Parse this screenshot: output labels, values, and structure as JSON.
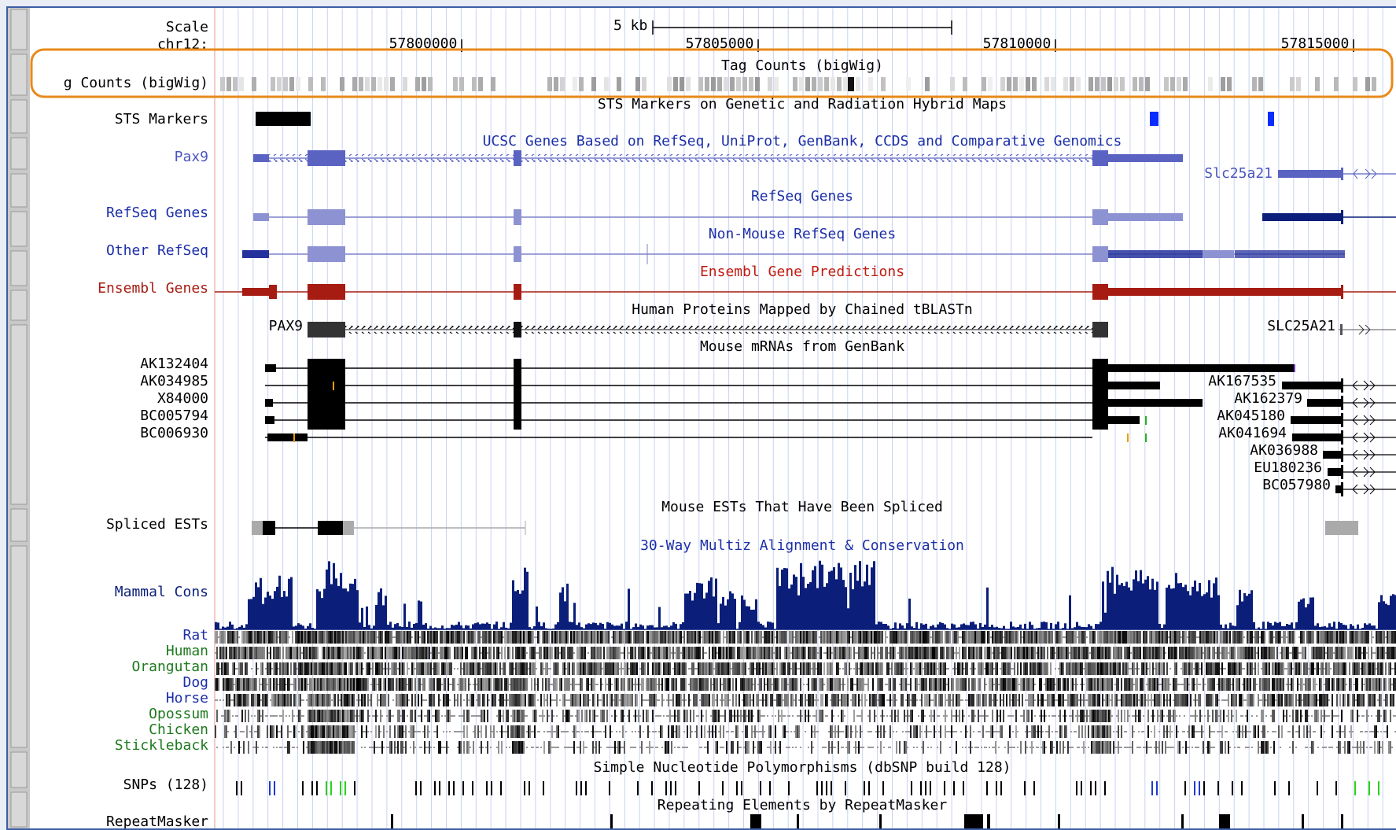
{
  "scale": {
    "label": "Scale",
    "bar_label": "5 kb"
  },
  "chrom": {
    "label": "chr12:",
    "positions": [
      "57800000",
      "57805000",
      "57810000",
      "57815000"
    ]
  },
  "tracks": {
    "tag_counts": {
      "title": "Tag Counts (bigWig)",
      "label": "g Counts (bigWig)"
    },
    "sts": {
      "title": "STS Markers on Genetic and Radiation Hybrid Maps",
      "label": "STS Markers"
    },
    "ucsc": {
      "title": "UCSC Genes Based on RefSeq, UniProt, GenBank, CCDS and Comparative Genomics",
      "label": "Pax9",
      "gene2": "Slc25a21"
    },
    "refseq": {
      "title": "RefSeq Genes",
      "label": "RefSeq Genes"
    },
    "other_refseq": {
      "title": "Non-Mouse RefSeq Genes",
      "label": "Other RefSeq"
    },
    "ensembl": {
      "title": "Ensembl Gene Predictions",
      "label": "Ensembl Genes"
    },
    "human_prot": {
      "title": "Human Proteins Mapped by Chained tBLASTn",
      "label1": "PAX9",
      "label2": "SLC25A21"
    },
    "mrna": {
      "title": "Mouse mRNAs from GenBank",
      "left_items": [
        "AK132404",
        "AK034985",
        "X84000",
        "BC005794",
        "BC006930"
      ],
      "right_items": [
        "AK167535",
        "AK162379",
        "AK045180",
        "AK041694",
        "AK036988",
        "EU180236",
        "BC057980"
      ]
    },
    "spliced": {
      "title": "Mouse ESTs That Have Been Spliced",
      "label": "Spliced ESTs"
    },
    "multiz": {
      "title": "30-Way Multiz Alignment & Conservation",
      "label": "Mammal Cons"
    },
    "species": [
      "Rat",
      "Human",
      "Orangutan",
      "Dog",
      "Horse",
      "Opossum",
      "Chicken",
      "Stickleback"
    ],
    "snps": {
      "title": "Simple Nucleotide Polymorphisms (dbSNP build 128)",
      "label": "SNPs (128)"
    },
    "repeat": {
      "title": "Repeating Elements by RepeatMasker",
      "label": "RepeatMasker"
    }
  },
  "colors": {
    "highlight": "#e8891a",
    "navy": "#0b1f7a",
    "blue": "#1c2fa8",
    "refseq": "#7d82c8",
    "ensembl": "#a61c12",
    "green": "#1f7a1f",
    "snp_green": "#2bd11f",
    "snp_blue": "#1e3ad1",
    "sts_blue": "#0a2cff"
  }
}
